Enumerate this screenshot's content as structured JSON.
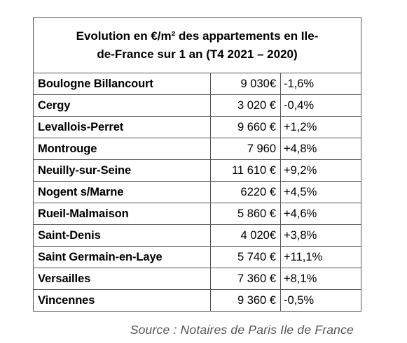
{
  "table": {
    "title_line1": "Evolution en €/m² des appartements en Ile-",
    "title_line2": "de-France sur 1 an (T4 2021 – 2020)",
    "rows": [
      {
        "city": "Boulogne Billancourt",
        "price": "9 030€",
        "change": "-1,6%"
      },
      {
        "city": "Cergy",
        "price": "3 020 €",
        "change": "-0,4%"
      },
      {
        "city": "Levallois-Perret",
        "price": "9 660 €",
        "change": "+1,2%"
      },
      {
        "city": "Montrouge",
        "price": "7 960",
        "change": "+4,8%"
      },
      {
        "city": "Neuilly-sur-Seine",
        "price": "11 610 €",
        "change": "+9,2%"
      },
      {
        "city": "Nogent s/Marne",
        "price": "6220 €",
        "change": "+4,5%"
      },
      {
        "city": "Rueil-Malmaison",
        "price": "5 860 €",
        "change": "+4,6%"
      },
      {
        "city": "Saint-Denis",
        "price": "4 020€",
        "change": "+3,8%"
      },
      {
        "city": "Saint Germain-en-Laye",
        "price": "5 740 €",
        "change": "+11,1%"
      },
      {
        "city": "Versailles",
        "price": "7 360 €",
        "change": "+8,1%"
      },
      {
        "city": "Vincennes",
        "price": "9 360 €",
        "change": "-0,5%"
      }
    ]
  },
  "source": "Source : Notaires de Paris Ile de France"
}
